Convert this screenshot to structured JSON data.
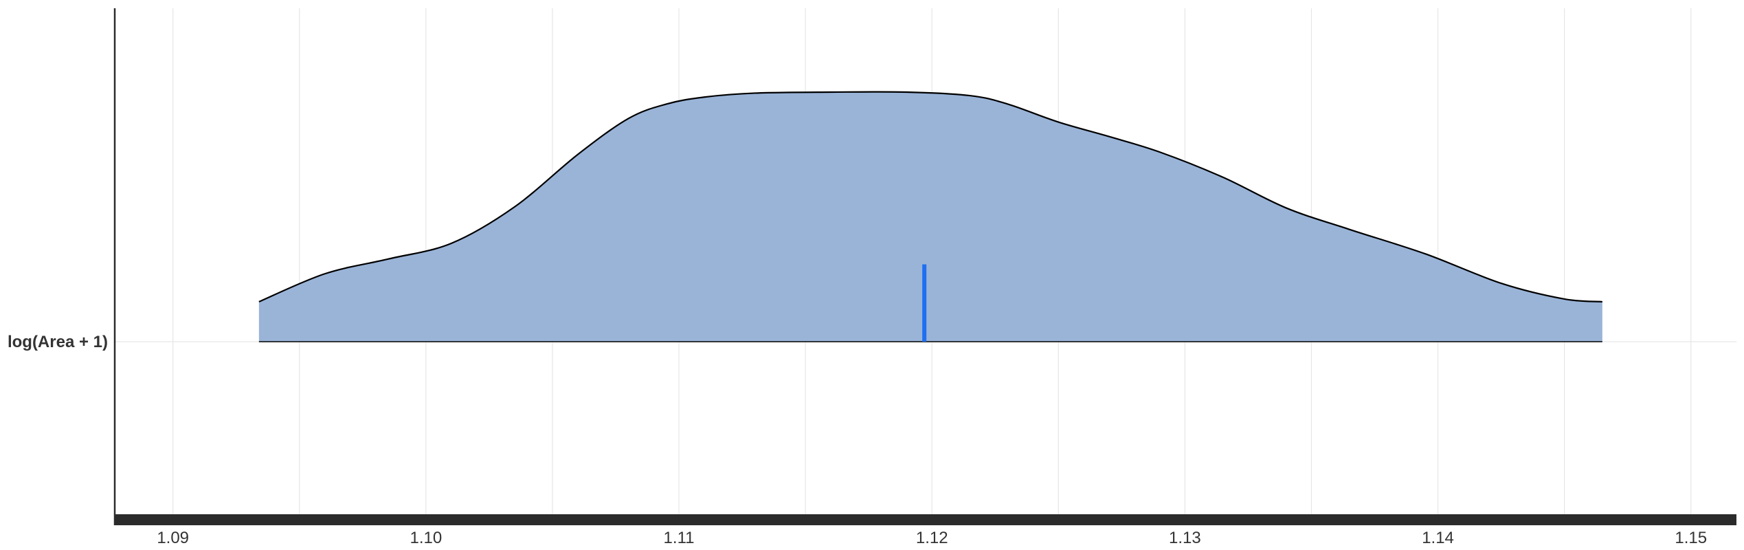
{
  "chart_data": {
    "type": "ridge-density",
    "title": "",
    "xlabel": "",
    "ylabel": "",
    "xlim": [
      1.0877,
      1.1518
    ],
    "x_ticks": [
      1.09,
      1.1,
      1.11,
      1.12,
      1.13,
      1.14,
      1.15
    ],
    "x_tick_labels": [
      "1.09",
      "1.10",
      "1.11",
      "1.12",
      "1.13",
      "1.14",
      "1.15"
    ],
    "x_minor_grid": [
      1.095,
      1.105,
      1.115,
      1.125,
      1.135,
      1.145
    ],
    "grid": true,
    "categories": [
      "log(Area + 1)"
    ],
    "series": [
      {
        "name": "log(Area + 1)",
        "fill_color": "#9ab4d8",
        "line_color": "#000000",
        "x": [
          1.0934,
          1.096,
          1.0985,
          1.101,
          1.1035,
          1.106,
          1.108,
          1.1095,
          1.111,
          1.113,
          1.116,
          1.119,
          1.1215,
          1.123,
          1.125,
          1.127,
          1.129,
          1.1315,
          1.134,
          1.1365,
          1.1395,
          1.1425,
          1.145,
          1.1465
        ],
        "density_rel": [
          0.16,
          0.272,
          0.331,
          0.394,
          0.54,
          0.75,
          0.894,
          0.952,
          0.98,
          0.996,
          1.0,
          1.0,
          0.986,
          0.952,
          0.88,
          0.822,
          0.76,
          0.659,
          0.536,
          0.45,
          0.352,
          0.234,
          0.171,
          0.16
        ],
        "median": 1.1197,
        "median_color": "#1f6ff0",
        "median_marker_rel_height": 0.31
      }
    ]
  }
}
